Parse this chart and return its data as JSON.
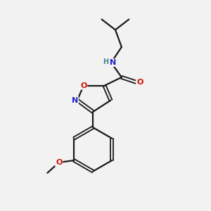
{
  "background_color": "#f2f2f2",
  "bond_color": "#1a1a1a",
  "atom_colors": {
    "N": "#2020cc",
    "O": "#cc1100",
    "H": "#408888",
    "C": "#1a1a1a"
  },
  "figsize": [
    3.0,
    3.0
  ],
  "dpi": 100
}
